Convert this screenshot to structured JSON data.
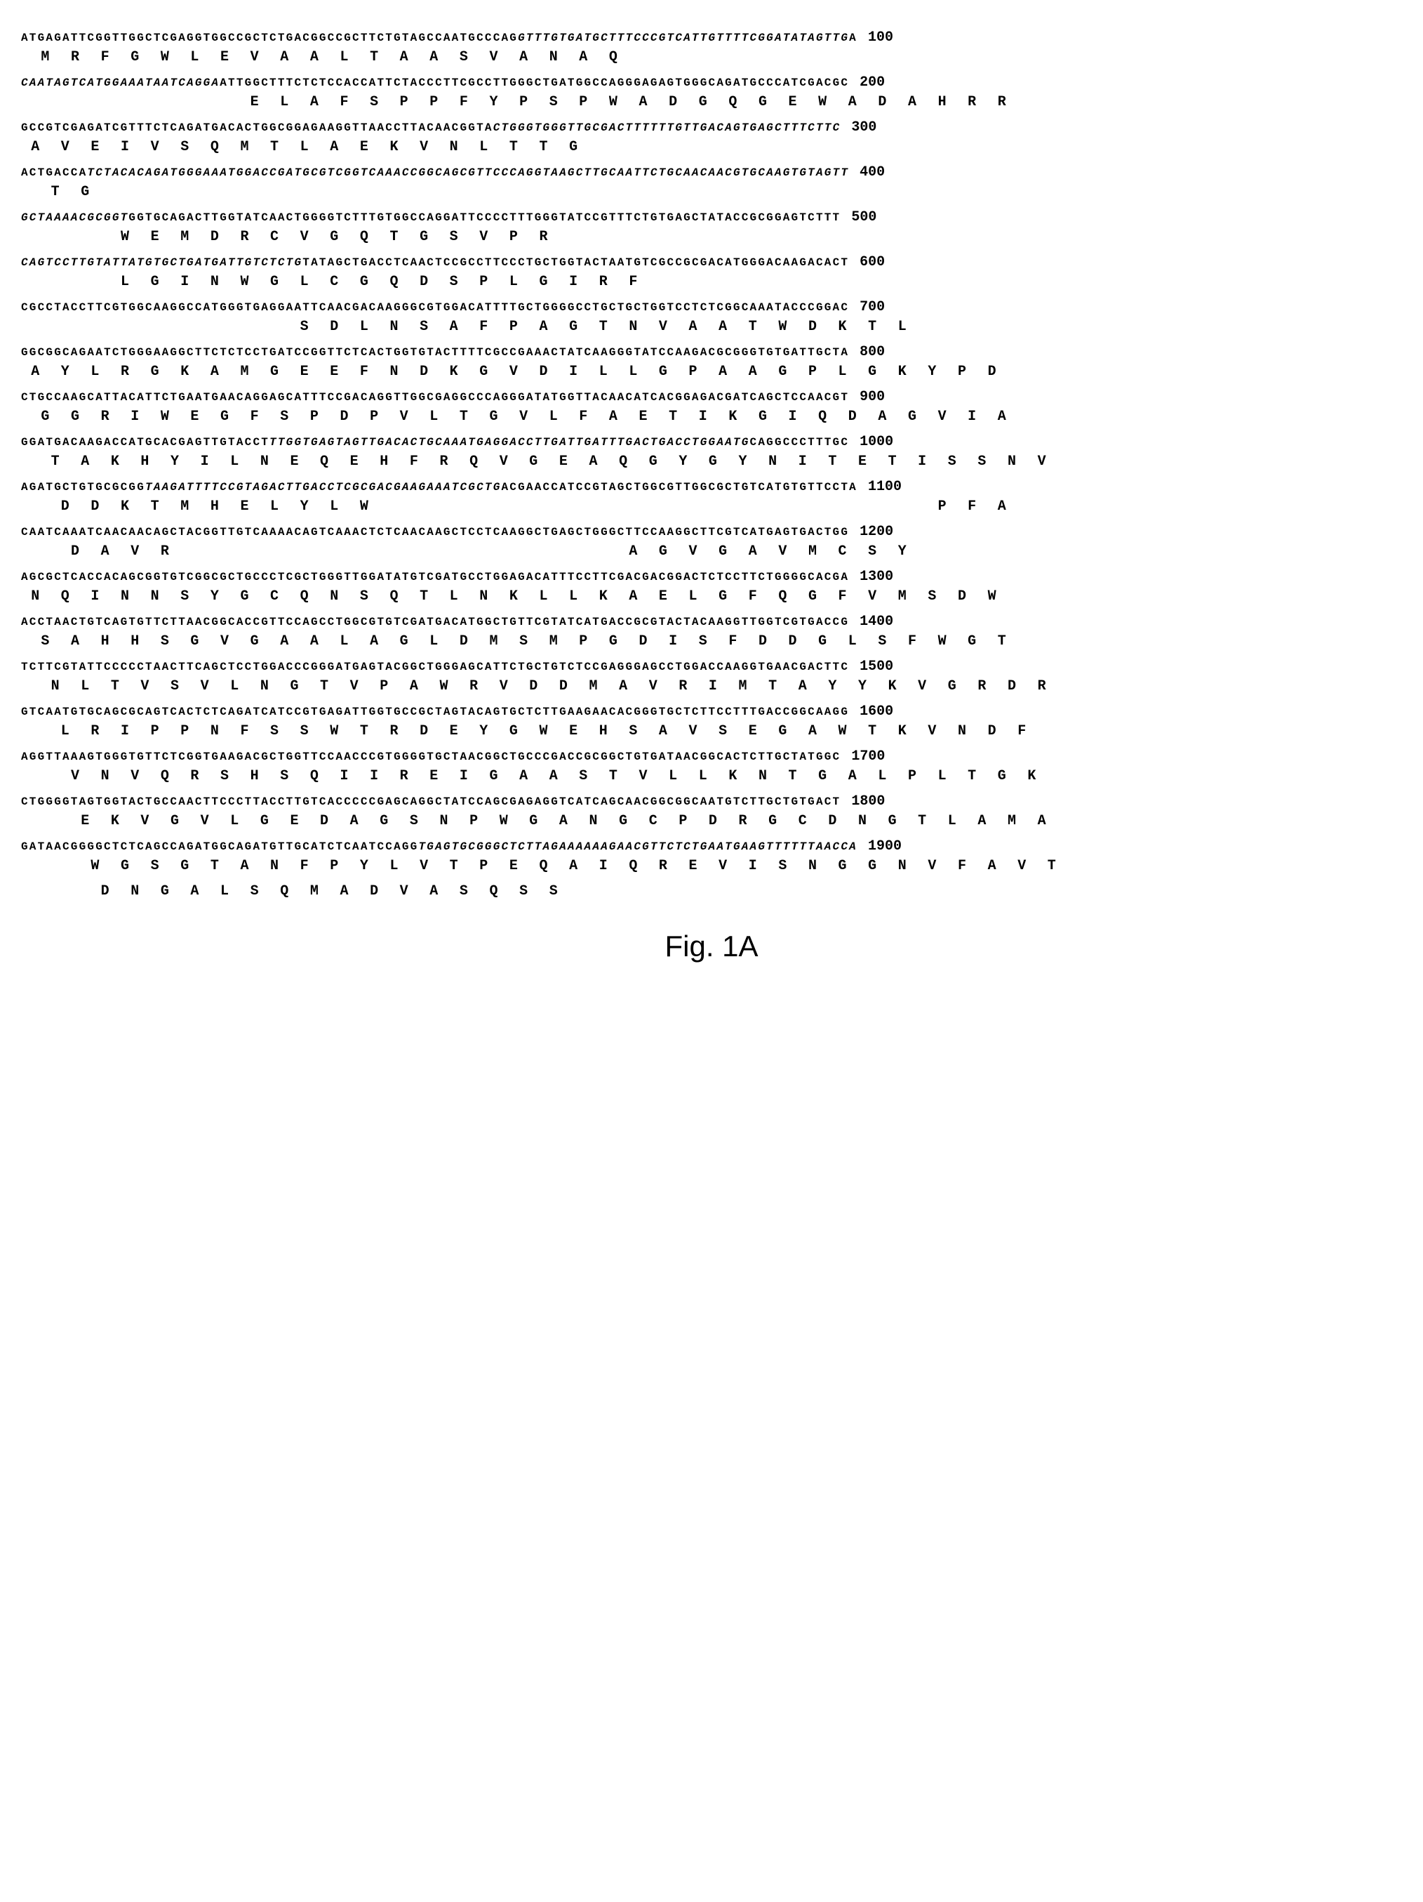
{
  "figure_label": "Fig. 1A",
  "styling": {
    "font_family": "Courier New",
    "dna_fontsize": 16,
    "protein_fontsize": 20,
    "position_fontsize": 20,
    "letter_spacing": 2.2,
    "background_color": "#ffffff",
    "text_color": "#000000",
    "font_weight": "bold",
    "figure_label_font": "Arial",
    "figure_label_fontsize": 42
  },
  "lines": [
    {
      "dna": "ATGAGATTCGGTTGGCTCGAGGTGGCCGCTCTGACGGCCGCTTCTGTAGCCAATGCCCAGGTTTGTGATGCTTTCCCGTCATTGTTTTCGGATATAGTTGA",
      "protein": "  M  R  F  G  W  L  E  V  A  A  L  T  A  A  S  V  A  N  A  Q",
      "pos": "100",
      "italic_dna": [
        60,
        100
      ]
    },
    {
      "dna": "CAATAGTCATGGAAATAATCAGGAATTGGCTTTCTCTCCACCATTCTACCCTTCGCCTTGGGCTGATGGCCAGGGAGAGTGGGCAGATGCCCATCGACGC",
      "protein": "                       E  L  A  F  S  P  P  F  Y  P  S  P  W  A  D  G  Q  G  E  W  A  D  A  H  R  R",
      "pos": "200",
      "italic_dna": [
        0,
        24
      ]
    },
    {
      "dna": "GCCGTCGAGATCGTTTCTCAGATGACACTGGCGGAGAAGGTTAACCTTACAACGGTACTGGGTGGGTTGCGACTTTTTTGTTGACAGTGAGCTTTCTTC",
      "protein": " A  V  E  I  V  S  Q  M  T  L  A  E  K  V  N  L  T  T  G  ",
      "pos": "300",
      "italic_dna": [
        57,
        99
      ]
    },
    {
      "dna": "ACTGACCATCTACACAGATGGGAAATGGACCGATGCGTCGGTCAAACCGGCAGCGTTCCCAGGTAAGCTTGCAATTCTGCAACAACGTGCAAGTGTAGTT",
      "protein": "   T  G                                                                                            ",
      "pos": "400",
      "italic_dna": [
        8,
        100
      ]
    },
    {
      "dna": "GCTAAAACGCGGTGGTGCAGACTTGGTATCAACTGGGGTCTTTGTGGCCAGGATTCCCCTTTGGGTATCCGTTTCTGTGAGCTATACCGCGGAGTCTTT",
      "protein": "          W  E  M  D  R  C  V  G  Q  T  G  S  V  P  R",
      "pos": "500",
      "italic_dna": [
        0,
        13
      ]
    },
    {
      "dna": "CAGTCCTTGTATTATGTGCTGATGATTGTCTCTGTATAGCTGACCTCAACTCCGCCTTCCCTGCTGGTACTAATGTCGCCGCGACATGGGACAAGACACT",
      "protein": "          L  G  I  N  W  G  L  C  G  Q  D  S  P  L  G  I  R  F",
      "pos": "600",
      "italic_dna": [
        0,
        34
      ]
    },
    {
      "dna": "CGCCTACCTTCGTGGCAAGGCCATGGGTGAGGAATTCAACGACAAGGGCGTGGACATTTTGCTGGGGCCTGCTGCTGGTCCTCTCGGCAAATACCCGGAC",
      "protein": "                            S  D  L  N  S  A  F  P  A  G  T  N  V  A  A  T  W  D  K  T  L",
      "pos": "700"
    },
    {
      "dna": "GGCGGCAGAATCTGGGAAGGCTTCTCTCCTGATCCGGTTCTCACTGGTGTACTTTTCGCCGAAACTATCAAGGGTATCCAAGACGCGGGTGTGATTGCTA",
      "protein": " A  Y  L  R  G  K  A  M  G  E  E  F  N  D  K  G  V  D  I  L  L  G  P  A  A  G  P  L  G  K  Y  P  D",
      "pos": "800"
    },
    {
      "dna": "CTGCCAAGCATTACATTCTGAATGAACAGGAGCATTTCCGACAGGTTGGCGAGGCCCAGGGATATGGTTACAACATCACGGAGACGATCAGCTCCAACGT",
      "protein": "  G  G  R  I  W  E  G  F  S  P  D  P  V  L  T  G  V  L  F  A  E  T  I  K  G  I  Q  D  A  G  V  I  A",
      "pos": "900"
    },
    {
      "dna": "GGATGACAAGACCATGCACGAGTTGTACCTTTGGTGAGTAGTTGACACTGCAAATGAGGACCTTGATTGATTTGACTGACCTGGAATGCAGGCCCTTTGC",
      "protein": "   T  A  K  H  Y  I  L  N  E  Q  E  H  F  R  Q  V  G  E  A  Q  G  Y  G  Y  N  I  T  E  T  I  S  S  N  V",
      "pos": "1000",
      "italic_dna": [
        30,
        88
      ]
    },
    {
      "dna": "AGATGCTGTGCGCGGTAAGATTTTCCGTAGACTTGACCTCGCGACGAAGAAATCGCTGACGAACCATCCGTAGCTGGCGTTGGCGCTGTCATGTGTTCCTA",
      "protein": "    D  D  K  T  M  H  E  L  Y  L  W                                                         P  F  A",
      "pos": "1100",
      "italic_dna": [
        15,
        58
      ]
    },
    {
      "dna": "CAATCAAATCAACAACAGCTACGGTTGTCAAAACAGTCAAACTCTCAACAAGCTCCTCAAGGCTGAGCTGGGCTTCCAAGGCTTCGTCATGAGTGACTGG",
      "protein": "     D  A  V  R                                              A  G  V  G  A  V  M  C  S  Y",
      "pos": "1200"
    },
    {
      "dna": "AGCGCTCACCACAGCGGTGTCGGCGCTGCCCTCGCTGGGTTGGATATGTCGATGCCTGGAGACATTTCCTTCGACGACGGACTCTCCTTCTGGGGCACGA",
      "protein": " N  Q  I  N  N  S  Y  G  C  Q  N  S  Q  T  L  N  K  L  L  K  A  E  L  G  F  Q  G  F  V  M  S  D  W",
      "pos": "1300"
    },
    {
      "dna": "ACCTAACTGTCAGTGTTCTTAACGGCACCGTTCCAGCCTGGCGTGTCGATGACATGGCTGTTCGTATCATGACCGCGTACTACAAGGTTGGTCGTGACCG",
      "protein": "  S  A  H  H  S  G  V  G  A  A  L  A  G  L  D  M  S  M  P  G  D  I  S  F  D  D  G  L  S  F  W  G  T",
      "pos": "1400"
    },
    {
      "dna": "TCTTCGTATTCCCCCTAACTTCAGCTCCTGGACCCGGGATGAGTACGGCTGGGAGCATTCTGCTGTCTCCGAGGGAGCCTGGACCAAGGTGAACGACTTC",
      "protein": "   N  L  T  V  S  V  L  N  G  T  V  P  A  W  R  V  D  D  M  A  V  R  I  M  T  A  Y  Y  K  V  G  R  D  R",
      "pos": "1500"
    },
    {
      "dna": "GTCAATGTGCAGCGCAGTCACTCTCAGATCATCCGTGAGATTGGTGCCGCTAGTACAGTGCTCTTGAAGAACACGGGTGCTCTTCCTTTGACCGGCAAGG",
      "protein": "    L  R  I  P  P  N  F  S  S  W  T  R  D  E  Y  G  W  E  H  S  A  V  S  E  G  A  W  T  K  V  N  D  F",
      "pos": "1600"
    },
    {
      "dna": "AGGTTAAAGTGGGTGTTCTCGGTGAAGACGCTGGTTCCAACCCGTGGGGTGCTAACGGCTGCCCGACCGCGGCTGTGATAACGGCACTCTTGCTATGGC",
      "protein": "     V  N  V  Q  R  S  H  S  Q  I  I  R  E  I  G  A  A  S  T  V  L  L  K  N  T  G  A  L  P  L  T  G  K",
      "pos": "1700"
    },
    {
      "dna": "CTGGGGTAGTGGTACTGCCAACTTCCCTTACCTTGTCACCCCCGAGCAGGCTATCCAGCGAGAGGTCATCAGCAACGGCGGCAATGTCTTGCTGTGACT",
      "protein": "      E  K  V  G  V  L  G  E  D  A  G  S  N  P  W  G  A  N  G  C  P  D  R  G  C  D  N  G  T  L  A  M  A",
      "pos": "1800"
    },
    {
      "dna": "GATAACGGGGCTCTCAGCCAGATGGCAGATGTTGCATCTCAATCCAGGTGAGTGCGGGCTCTTAGAAAAAAGAACGTTCTCTGAATGAAGTTTTTTAACCA",
      "protein": "       W  G  S  G  T  A  N  F  P  Y  L  V  T  P  E  Q  A  I  Q  R  E  V  I  S  N  G  G  N  V  F  A  V  T",
      "pos": "1900",
      "italic_dna": [
        48,
        101
      ]
    },
    {
      "dna": "",
      "protein": "        D  N  G  A  L  S  Q  M  A  D  V  A  S  Q  S  S",
      "pos": ""
    }
  ]
}
